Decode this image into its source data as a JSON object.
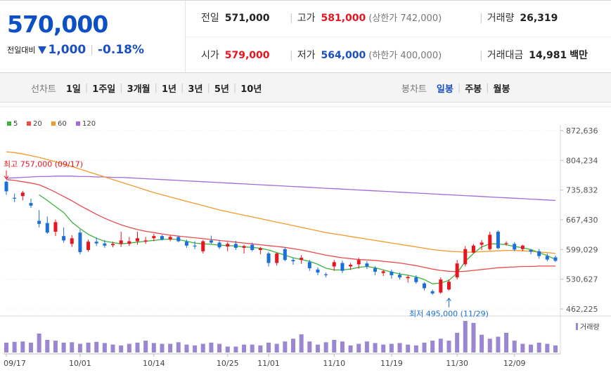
{
  "price": {
    "current": "570,000",
    "change_label": "전일대비",
    "change": "1,000",
    "change_pct": "-0.18%",
    "direction_icon": "down-triangle-icon"
  },
  "summary": {
    "prev_close": {
      "label": "전일",
      "value": "571,000"
    },
    "high": {
      "label": "고가",
      "value": "581,000",
      "sub": "(상한가 742,000)"
    },
    "volume": {
      "label": "거래량",
      "value": "26,319"
    },
    "open": {
      "label": "시가",
      "value": "579,000"
    },
    "low": {
      "label": "저가",
      "value": "564,000",
      "sub": "(하한가 400,000)"
    },
    "amount": {
      "label": "거래대금",
      "value": "14,981",
      "unit": "백만"
    }
  },
  "line_tabs": {
    "title": "선차트",
    "items": [
      "1일",
      "1주일",
      "3개월",
      "1년",
      "3년",
      "5년",
      "10년"
    ]
  },
  "candle_tabs": {
    "title": "봉차트",
    "items": [
      "일봉",
      "주봉",
      "월봉"
    ],
    "active": "일봉"
  },
  "colors": {
    "up": "#e8141f",
    "down": "#1a6fd8",
    "ma5": "#3cb33c",
    "ma20": "#ec4b4b",
    "ma60": "#f39a2b",
    "ma120": "#a36ad8",
    "volume": "#9b86d1"
  },
  "chart_data": {
    "type": "candlestick",
    "legend": [
      {
        "name": "5",
        "color": "#3cb33c"
      },
      {
        "name": "20",
        "color": "#ec4b4b"
      },
      {
        "name": "60",
        "color": "#f39a2b"
      },
      {
        "name": "120",
        "color": "#a36ad8"
      }
    ],
    "y_ticks": [
      "872,636",
      "804,234",
      "735,832",
      "667,430",
      "599,029",
      "530,627",
      "462,225"
    ],
    "ylim": [
      462225,
      872636
    ],
    "x_ticks": [
      {
        "label": "09/17",
        "index": 0
      },
      {
        "label": "10/01",
        "index": 9
      },
      {
        "label": "10/14",
        "index": 18
      },
      {
        "label": "10/25",
        "index": 27
      },
      {
        "label": "11/01",
        "index": 32
      },
      {
        "label": "11/10",
        "index": 40
      },
      {
        "label": "11/19",
        "index": 47
      },
      {
        "label": "11/30",
        "index": 55
      },
      {
        "label": "12/09",
        "index": 62
      }
    ],
    "annotations": {
      "high": {
        "text": "최고 757,000 (09/17)",
        "index": 0,
        "value": 757000
      },
      "low": {
        "text": "최저 495,000 (11/29)",
        "index": 54,
        "value": 495000
      }
    },
    "volume_label": "거래량",
    "candles": [
      [
        755000,
        757000,
        725000,
        733000
      ],
      [
        718000,
        728000,
        708000,
        716000
      ],
      [
        722000,
        734000,
        712000,
        730000
      ],
      [
        706000,
        716000,
        695000,
        700000
      ],
      [
        665000,
        690000,
        650000,
        658000
      ],
      [
        660000,
        675000,
        635000,
        638000
      ],
      [
        640000,
        668000,
        630000,
        662000
      ],
      [
        630000,
        650000,
        615000,
        620000
      ],
      [
        612000,
        632000,
        605000,
        625000
      ],
      [
        638000,
        645000,
        588000,
        593000
      ],
      [
        598000,
        622000,
        594000,
        617000
      ],
      [
        617000,
        627000,
        607000,
        613000
      ],
      [
        613000,
        621000,
        603000,
        608000
      ],
      [
        609000,
        617000,
        604000,
        612000
      ],
      [
        612000,
        640000,
        605000,
        620000
      ],
      [
        612000,
        628000,
        607000,
        618000
      ],
      [
        618000,
        640000,
        610000,
        625000
      ],
      [
        617000,
        628000,
        612000,
        620000
      ],
      [
        625000,
        635000,
        618000,
        630000
      ],
      [
        630000,
        633000,
        620000,
        622000
      ],
      [
        622000,
        632000,
        618000,
        628000
      ],
      [
        628000,
        631000,
        616000,
        618000
      ],
      [
        617000,
        622000,
        603000,
        608000
      ],
      [
        608000,
        618000,
        600000,
        606000
      ],
      [
        595000,
        621000,
        590000,
        618000
      ],
      [
        620000,
        631000,
        612000,
        615000
      ],
      [
        615000,
        620000,
        600000,
        604000
      ],
      [
        606000,
        616000,
        595000,
        612000
      ],
      [
        612000,
        619000,
        598000,
        603000
      ],
      [
        603000,
        610000,
        590000,
        607000
      ],
      [
        610000,
        615000,
        595000,
        598000
      ],
      [
        598000,
        605000,
        588000,
        602000
      ],
      [
        590000,
        594000,
        560000,
        568000
      ],
      [
        568000,
        592000,
        562000,
        590000
      ],
      [
        600000,
        604000,
        572000,
        575000
      ],
      [
        575000,
        580000,
        564000,
        572000
      ],
      [
        575000,
        586000,
        566000,
        580000
      ],
      [
        570000,
        575000,
        550000,
        556000
      ],
      [
        553000,
        558000,
        540000,
        546000
      ],
      [
        542000,
        546000,
        535000,
        540000
      ],
      [
        560000,
        575000,
        550000,
        570000
      ],
      [
        568000,
        573000,
        545000,
        550000
      ],
      [
        560000,
        568000,
        552000,
        564000
      ],
      [
        565000,
        580000,
        555000,
        575000
      ],
      [
        567000,
        572000,
        554000,
        560000
      ],
      [
        556000,
        561000,
        540000,
        548000
      ],
      [
        545000,
        552000,
        538000,
        549000
      ],
      [
        548000,
        553000,
        532000,
        540000
      ],
      [
        541000,
        546000,
        530000,
        535000
      ],
      [
        533000,
        540000,
        523000,
        536000
      ],
      [
        535000,
        540000,
        520000,
        524000
      ],
      [
        521000,
        524000,
        505000,
        510000
      ],
      [
        503000,
        507000,
        495000,
        498000
      ],
      [
        500000,
        535000,
        497000,
        530000
      ],
      [
        507000,
        530000,
        505000,
        525000
      ],
      [
        535000,
        575000,
        530000,
        567000
      ],
      [
        565000,
        607000,
        560000,
        600000
      ],
      [
        592000,
        612000,
        590000,
        608000
      ],
      [
        610000,
        621000,
        598000,
        615000
      ],
      [
        600000,
        640000,
        597000,
        633000
      ],
      [
        640000,
        643000,
        600000,
        602000
      ],
      [
        612000,
        618000,
        608000,
        614000
      ],
      [
        612000,
        616000,
        595000,
        599000
      ],
      [
        600000,
        610000,
        595000,
        608000
      ],
      [
        598000,
        600000,
        588000,
        594000
      ],
      [
        595000,
        600000,
        578000,
        584000
      ],
      [
        584000,
        590000,
        572000,
        576000
      ],
      [
        581000,
        585000,
        570000,
        573000
      ]
    ],
    "ma5": [
      null,
      null,
      null,
      null,
      725000,
      712000,
      698000,
      684000,
      662000,
      647000,
      634000,
      625000,
      618000,
      615000,
      612000,
      614000,
      616000,
      618000,
      620000,
      622000,
      623000,
      622000,
      618000,
      614000,
      612000,
      611000,
      609000,
      608000,
      607000,
      605000,
      604000,
      602000,
      598000,
      592000,
      586000,
      580000,
      576000,
      572000,
      565000,
      556000,
      552000,
      552000,
      554000,
      558000,
      560000,
      557000,
      552000,
      547000,
      543000,
      540000,
      536000,
      530000,
      520000,
      522000,
      528000,
      545000,
      572000,
      590000,
      605000,
      612000,
      612000,
      610000,
      606000,
      603000,
      599000,
      592000,
      585000,
      576000
    ],
    "ma20": [
      760000,
      758000,
      755000,
      752000,
      748000,
      740000,
      731000,
      721000,
      711000,
      700000,
      690000,
      680000,
      671000,
      663000,
      656000,
      650000,
      645000,
      641000,
      638000,
      635000,
      632000,
      630000,
      628000,
      626000,
      624000,
      622000,
      620000,
      618000,
      616000,
      614000,
      612000,
      610000,
      608000,
      606000,
      604000,
      601000,
      598000,
      594000,
      590000,
      586000,
      583000,
      580000,
      578000,
      576000,
      575000,
      574000,
      572000,
      570000,
      568000,
      565000,
      562000,
      558000,
      554000,
      551000,
      549000,
      548000,
      549000,
      551000,
      553000,
      555000,
      557000,
      558000,
      559000,
      560000,
      560000,
      561000,
      561000,
      561000
    ],
    "ma60": [
      824000,
      822000,
      819000,
      815000,
      811000,
      806000,
      801000,
      795000,
      790000,
      784000,
      778000,
      772000,
      766000,
      760000,
      754000,
      748000,
      742000,
      736000,
      730000,
      725000,
      720000,
      715000,
      710000,
      705000,
      700000,
      695000,
      690000,
      686000,
      682000,
      678000,
      674000,
      670000,
      666000,
      662000,
      658000,
      654000,
      650000,
      646000,
      642000,
      638000,
      635000,
      632000,
      629000,
      626000,
      623000,
      620000,
      617000,
      614000,
      611000,
      608000,
      605000,
      602000,
      599000,
      597000,
      595000,
      594000,
      593000,
      593000,
      594000,
      595000,
      596000,
      597000,
      597000,
      596000,
      595000,
      593000,
      592000,
      590000
    ],
    "ma120": [
      763000,
      764000,
      765000,
      766000,
      767000,
      767000,
      768000,
      768000,
      768000,
      767000,
      767000,
      766000,
      766000,
      765000,
      765000,
      764000,
      763000,
      762000,
      761000,
      760000,
      759000,
      758000,
      757000,
      756000,
      755000,
      754000,
      753000,
      752000,
      751000,
      750000,
      749000,
      748000,
      747000,
      746000,
      745000,
      744000,
      743000,
      742000,
      741000,
      740000,
      739000,
      738000,
      737000,
      736000,
      735000,
      734000,
      733000,
      732000,
      731000,
      730000,
      729000,
      728000,
      727000,
      726000,
      725000,
      724000,
      723000,
      722000,
      721000,
      720000,
      719000,
      718000,
      717000,
      716000,
      715000,
      714000,
      713000,
      712000
    ],
    "volumes": [
      25,
      27,
      28,
      25,
      48,
      32,
      30,
      25,
      26,
      22,
      25,
      27,
      24,
      20,
      18,
      22,
      25,
      30,
      24,
      22,
      22,
      26,
      20,
      18,
      22,
      25,
      22,
      15,
      15,
      20,
      20,
      18,
      25,
      22,
      28,
      35,
      46,
      28,
      20,
      26,
      32,
      28,
      18,
      22,
      28,
      24,
      20,
      22,
      24,
      20,
      18,
      25,
      30,
      35,
      30,
      50,
      80,
      75,
      45,
      35,
      40,
      50,
      30,
      22,
      20,
      25,
      22,
      18
    ]
  }
}
